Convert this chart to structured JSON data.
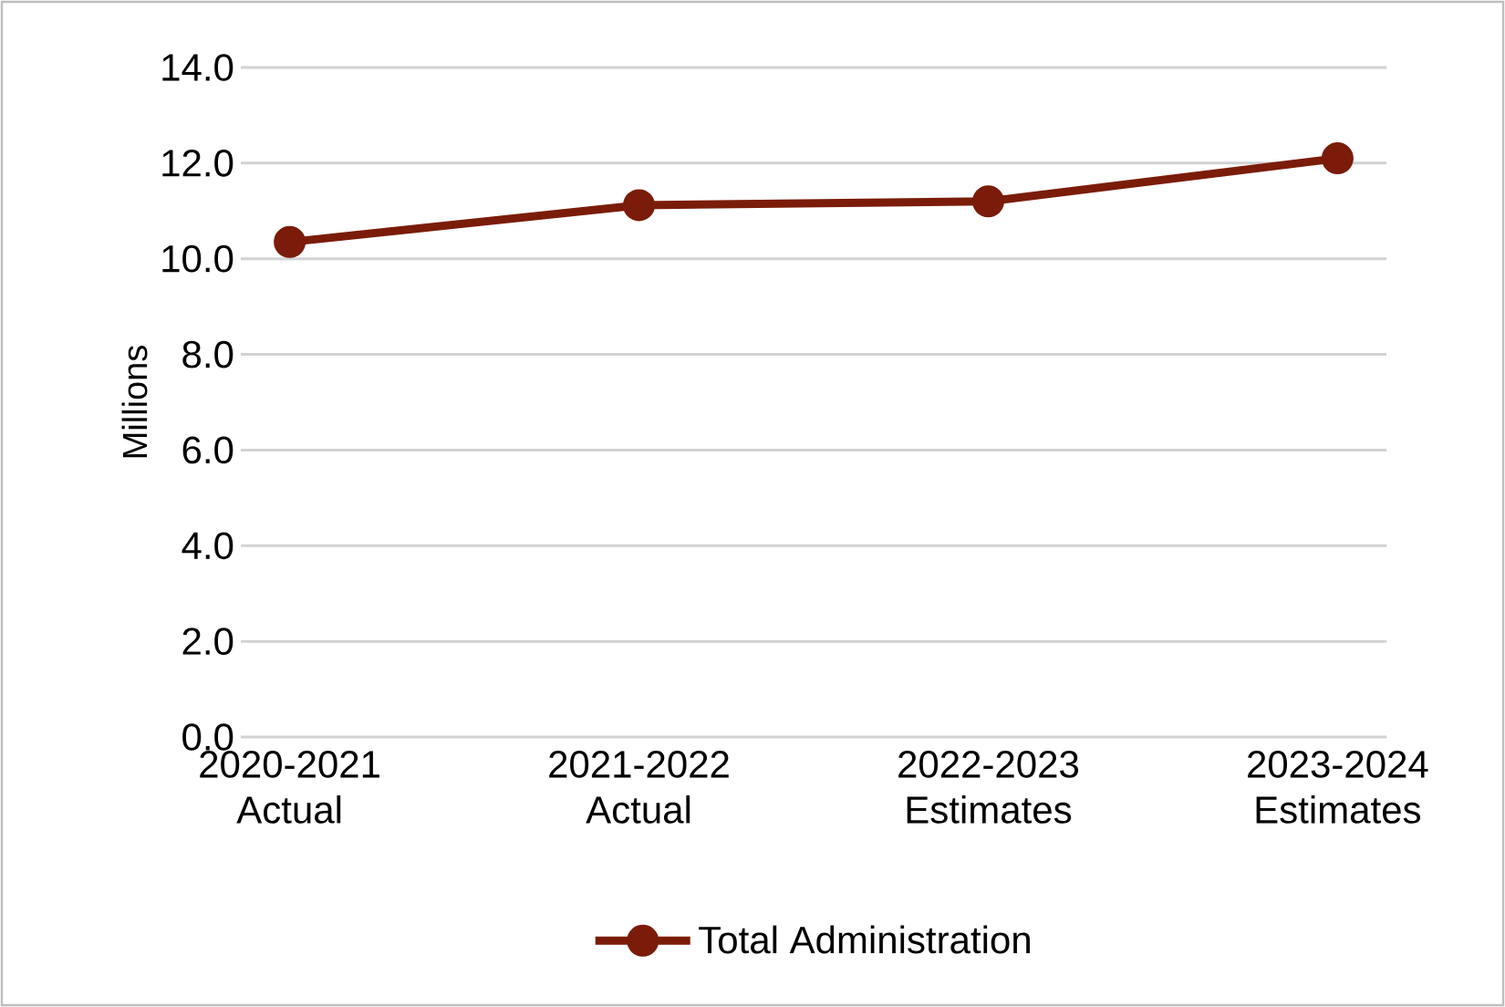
{
  "chart_data": {
    "type": "line",
    "ylabel": "Millions",
    "categories": [
      "2020-2021 Actual",
      "2021-2022 Actual",
      "2022-2023 Estimates",
      "2023-2024 Estimates"
    ],
    "series": [
      {
        "name": "Total Administration",
        "color": "#7b1c0a",
        "values": [
          10.35,
          11.12,
          11.2,
          12.1
        ]
      }
    ],
    "ylim": [
      0,
      14
    ],
    "yticks": [
      {
        "value": 0,
        "label": "0.0"
      },
      {
        "value": 2,
        "label": "2.0"
      },
      {
        "value": 4,
        "label": "4.0"
      },
      {
        "value": 6,
        "label": "6.0"
      },
      {
        "value": 8,
        "label": "8.0"
      },
      {
        "value": 10,
        "label": "10.0"
      },
      {
        "value": 12,
        "label": "12.0"
      },
      {
        "value": 14,
        "label": "14.0"
      }
    ],
    "grid": "y",
    "legend": "bottom",
    "marker": "circle"
  }
}
